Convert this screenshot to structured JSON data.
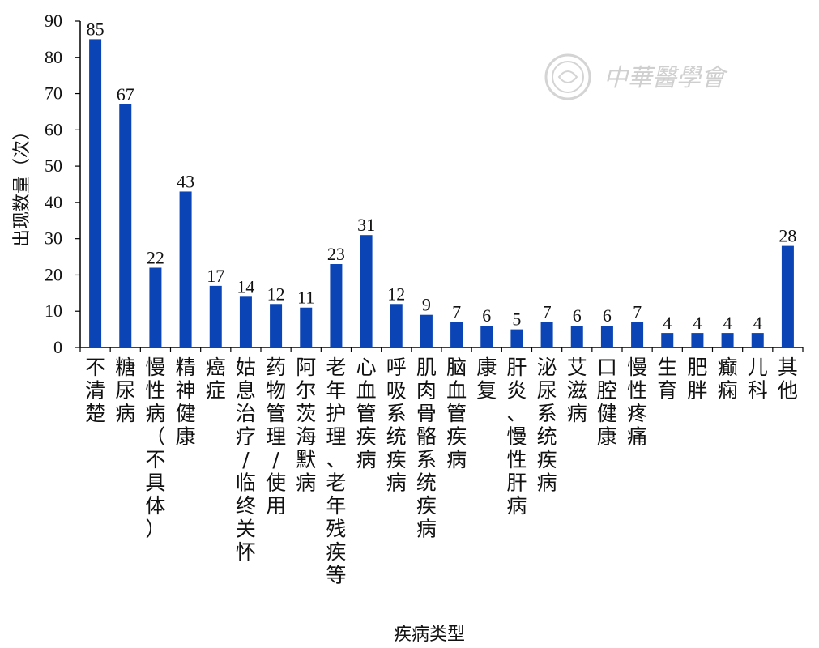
{
  "chart_data": {
    "type": "bar",
    "xlabel": "疾病类型",
    "ylabel": "出现数量（次）",
    "ylim": [
      0,
      90
    ],
    "yticks": [
      0,
      10,
      20,
      30,
      40,
      50,
      60,
      70,
      80,
      90
    ],
    "grid": false,
    "bar_color": "#0b45b5",
    "categories": [
      "不清楚",
      "糖尿病",
      "慢性病（不具体）",
      "精神健康",
      "癌症",
      "姑息治疗/临终关怀",
      "药物管理/使用",
      "阿尔茨海默病",
      "老年护理、老年残疾等",
      "心血管疾病",
      "呼吸系统疾病",
      "肌肉骨骼系统疾病",
      "脑血管疾病",
      "康复",
      "肝炎、慢性肝病",
      "泌尿系统疾病",
      "艾滋病",
      "口腔健康",
      "慢性疼痛",
      "生育",
      "肥胖",
      "癫痫",
      "儿科",
      "其他"
    ],
    "values": [
      85,
      67,
      22,
      43,
      17,
      14,
      12,
      11,
      23,
      31,
      12,
      9,
      7,
      6,
      5,
      7,
      6,
      6,
      7,
      4,
      4,
      4,
      4,
      28
    ]
  },
  "watermark": {
    "text": "中華醫學會",
    "logo_icon": "cma-seal-icon",
    "color": "#cfcfcf"
  }
}
